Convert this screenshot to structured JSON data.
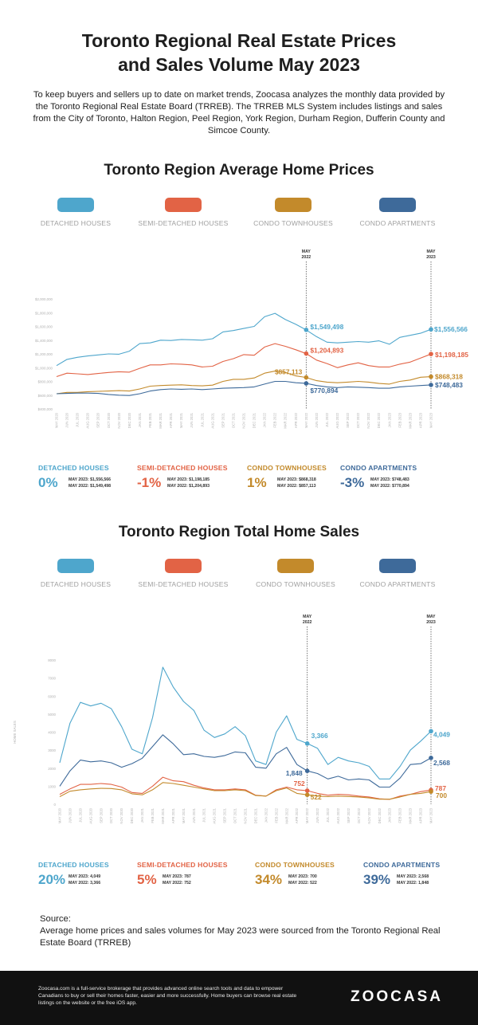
{
  "header": {
    "title_line1": "Toronto Regional Real Estate Prices",
    "title_line2": "and Sales Volume May 2023",
    "intro": "To keep buyers and sellers up to date on market trends, Zoocasa analyzes the monthly data provided by the Toronto Regional Real Estate Board (TRREB). The TRREB MLS System includes listings and sales from the City of Toronto, Halton Region, Peel Region, York Region, Durham Region, Dufferin County and Simcoe County."
  },
  "colors": {
    "detached": "#4ea6cc",
    "semi": "#e26345",
    "condo_town": "#c38a2b",
    "condo_apt": "#3e6a9a"
  },
  "legend": [
    {
      "key": "detached",
      "label": "DETACHED HOUSES"
    },
    {
      "key": "semi",
      "label": "SEMI-DETACHED HOUSES"
    },
    {
      "key": "condo_town",
      "label": "CONDO TOWNHOUSES"
    },
    {
      "key": "condo_apt",
      "label": "CONDO APARTMENTS"
    }
  ],
  "chart_data": [
    {
      "type": "line",
      "title": "Toronto Region Average Home Prices",
      "x": [
        "MAY 2020",
        "JUN 2020",
        "JUL 2020",
        "AUG 2020",
        "SEP 2020",
        "OCT 2020",
        "NOV 2020",
        "DEC 2020",
        "JAN 2021",
        "FEB 2021",
        "MAR 2021",
        "APR 2021",
        "MAY 2021",
        "JUN 2021",
        "JUL 2021",
        "AUG 2021",
        "SEP 2021",
        "OCT 2021",
        "NOV 2021",
        "DEC 2021",
        "JAN 2022",
        "FEB 2022",
        "MAR 2022",
        "APR 2022",
        "MAY 2022",
        "JUN 2022",
        "JUL 2022",
        "AUG 2022",
        "SEP 2022",
        "OCT 2022",
        "NOV 2022",
        "DEC 2022",
        "JAN 2023",
        "FEB 2023",
        "MAR 2023",
        "APR 2023",
        "MAY 2023"
      ],
      "yticks": [
        "$2,000,000",
        "$1,800,000",
        "$1,600,000",
        "$1,400,000",
        "$1,200,000",
        "$1,000,000",
        "$800,000",
        "$600,000",
        "$400,000"
      ],
      "ylim": [
        400000,
        2000000
      ],
      "markers": [
        "MAY 2022",
        "MAY 2023"
      ],
      "series": [
        {
          "name": "DETACHED HOUSES",
          "key": "detached",
          "values": [
            1030000,
            1120000,
            1150000,
            1170000,
            1185000,
            1200000,
            1195000,
            1240000,
            1350000,
            1360000,
            1400000,
            1395000,
            1410000,
            1405000,
            1400000,
            1420000,
            1520000,
            1540000,
            1570000,
            1600000,
            1740000,
            1790000,
            1700000,
            1630000,
            1549498,
            1450000,
            1370000,
            1360000,
            1370000,
            1380000,
            1370000,
            1390000,
            1340000,
            1440000,
            1470000,
            1500000,
            1556566
          ]
        },
        {
          "name": "SEMI-DETACHED HOUSES",
          "key": "semi",
          "values": [
            870000,
            920000,
            910000,
            900000,
            915000,
            930000,
            940000,
            935000,
            990000,
            1040000,
            1040000,
            1055000,
            1050000,
            1040000,
            1010000,
            1020000,
            1090000,
            1130000,
            1190000,
            1180000,
            1300000,
            1350000,
            1310000,
            1260000,
            1204893,
            1110000,
            1060000,
            1000000,
            1040000,
            1070000,
            1030000,
            1010000,
            1010000,
            1050000,
            1080000,
            1140000,
            1198185
          ]
        },
        {
          "name": "CONDO TOWNHOUSES",
          "key": "condo_town",
          "values": [
            620000,
            640000,
            640000,
            650000,
            655000,
            660000,
            665000,
            660000,
            690000,
            730000,
            740000,
            745000,
            750000,
            740000,
            735000,
            745000,
            800000,
            830000,
            830000,
            850000,
            920000,
            950000,
            930000,
            880000,
            857113,
            810000,
            790000,
            780000,
            790000,
            800000,
            790000,
            770000,
            760000,
            800000,
            820000,
            860000,
            868318
          ]
        },
        {
          "name": "CONDO APARTMENTS",
          "key": "condo_apt",
          "values": [
            620000,
            625000,
            630000,
            630000,
            625000,
            610000,
            600000,
            595000,
            620000,
            660000,
            680000,
            690000,
            685000,
            690000,
            680000,
            690000,
            700000,
            705000,
            710000,
            720000,
            760000,
            800000,
            800000,
            780000,
            770894,
            740000,
            720000,
            710000,
            720000,
            715000,
            710000,
            700000,
            700000,
            720000,
            730000,
            740000,
            748483
          ]
        }
      ],
      "callouts": {
        "may2022": [
          "$1,549,498",
          "$1,204,893",
          "$857,113",
          "$770,894"
        ],
        "may2023": [
          "$1,556,566",
          "$1,198,185",
          "$868,318",
          "$748,483"
        ]
      }
    },
    {
      "type": "line",
      "title": "Toronto Region Total Home Sales",
      "ylabel": "HOME SALES",
      "x": [
        "MAY 2020",
        "JUN 2020",
        "JUL 2020",
        "AUG 2020",
        "SEP 2020",
        "OCT 2020",
        "NOV 2020",
        "DEC 2020",
        "JAN 2021",
        "FEB 2021",
        "MAR 2021",
        "APR 2021",
        "MAY 2021",
        "JUN 2021",
        "JUL 2021",
        "AUG 2021",
        "SEP 2021",
        "OCT 2021",
        "NOV 2021",
        "DEC 2021",
        "JAN 2022",
        "FEB 2022",
        "MAR 2022",
        "APR 2022",
        "MAY 2022",
        "JUN 2022",
        "JUL 2022",
        "AUG 2022",
        "SEP 2022",
        "OCT 2022",
        "NOV 2022",
        "DEC 2022",
        "JAN 2023",
        "FEB 2023",
        "MAR 2023",
        "APR 2023",
        "MAY 2023"
      ],
      "yticks": [
        "8000",
        "7000",
        "6000",
        "5000",
        "4000",
        "3000",
        "2000",
        "1000",
        "0"
      ],
      "ylim": [
        0,
        8000
      ],
      "markers": [
        "MAY 2022",
        "MAY 2023"
      ],
      "series": [
        {
          "name": "DETACHED HOUSES",
          "key": "detached",
          "values": [
            2300,
            4500,
            5650,
            5450,
            5600,
            5300,
            4300,
            3050,
            2800,
            4800,
            7600,
            6500,
            5700,
            5200,
            4100,
            3700,
            3900,
            4300,
            3800,
            2400,
            2200,
            4000,
            4900,
            3600,
            3366,
            3100,
            2200,
            2600,
            2400,
            2300,
            2100,
            1400,
            1400,
            2100,
            3000,
            3500,
            4049
          ]
        },
        {
          "name": "SEMI-DETACHED HOUSES",
          "key": "semi",
          "values": [
            550,
            850,
            1100,
            1100,
            1150,
            1100,
            950,
            650,
            600,
            1000,
            1500,
            1300,
            1250,
            1050,
            900,
            800,
            800,
            850,
            800,
            500,
            450,
            800,
            950,
            800,
            752,
            600,
            500,
            550,
            520,
            450,
            400,
            300,
            270,
            450,
            550,
            700,
            787
          ]
        },
        {
          "name": "CONDO TOWNHOUSES",
          "key": "condo_town",
          "values": [
            420,
            720,
            800,
            850,
            880,
            870,
            800,
            580,
            520,
            800,
            1200,
            1150,
            1050,
            950,
            850,
            750,
            750,
            800,
            750,
            480,
            450,
            750,
            900,
            600,
            522,
            450,
            420,
            450,
            430,
            400,
            350,
            280,
            280,
            400,
            550,
            600,
            700
          ]
        },
        {
          "name": "CONDO APARTMENTS",
          "key": "condo_apt",
          "values": [
            1000,
            1850,
            2450,
            2350,
            2400,
            2300,
            2050,
            2250,
            2550,
            3200,
            3850,
            3350,
            2750,
            2800,
            2650,
            2600,
            2700,
            2900,
            2850,
            2050,
            2000,
            2800,
            3150,
            2200,
            1848,
            1700,
            1400,
            1550,
            1350,
            1400,
            1350,
            950,
            950,
            1450,
            2200,
            2250,
            2568
          ]
        }
      ],
      "callouts": {
        "may2022": [
          "3,366",
          "752",
          "522",
          "1,848"
        ],
        "may2023": [
          "4,049",
          "787",
          "700",
          "2,568"
        ]
      }
    }
  ],
  "marker_labels": {
    "left": [
      "MAY",
      "2022"
    ],
    "right": [
      "MAY",
      "2023"
    ]
  },
  "price_stats": [
    {
      "key": "detached",
      "name": "DETACHED HOUSES",
      "pct": "0%",
      "line1": "MAY 2023:  $1,556,566",
      "line2": "MAY 2022:  $1,549,498"
    },
    {
      "key": "semi",
      "name": "SEMI-DETACHED HOUSES",
      "pct": "-1%",
      "line1": "MAY 2023:  $1,198,185",
      "line2": "MAY 2022:  $1,204,893"
    },
    {
      "key": "condo_town",
      "name": "CONDO TOWNHOUSES",
      "pct": "1%",
      "line1": "MAY 2023:  $868,318",
      "line2": "MAY 2022:  $857,113"
    },
    {
      "key": "condo_apt",
      "name": "CONDO APARTMENTS",
      "pct": "-3%",
      "line1": "MAY 2023:  $748,483",
      "line2": "MAY 2022:  $770,894"
    }
  ],
  "sales_stats": [
    {
      "key": "detached",
      "name": "DETACHED HOUSES",
      "pct": "20%",
      "line1": "MAY 2023:  4,049",
      "line2": "MAY 2022:  3,366"
    },
    {
      "key": "semi",
      "name": "SEMI-DETACHED HOUSES",
      "pct": "5%",
      "line1": "MAY 2023:  787",
      "line2": "MAY 2022:  752"
    },
    {
      "key": "condo_town",
      "name": "CONDO TOWNHOUSES",
      "pct": "34%",
      "line1": "MAY 2023:  700",
      "line2": "MAY 2022:  522"
    },
    {
      "key": "condo_apt",
      "name": "CONDO APARTMENTS",
      "pct": "39%",
      "line1": "MAY 2023:  2,568",
      "line2": "MAY 2022:  1,848"
    }
  ],
  "source": {
    "heading": "Source:",
    "text": "Average home prices and sales volumes for May 2023 were sourced from the Toronto Regional Real Estate Board (TRREB)"
  },
  "footer": {
    "text": "Zoocasa.com is a full-service brokerage that provides advanced online search tools and data to empower Canadians to buy or sell their homes faster, easier and more successfully. Home buyers can browse real estate listings on the website or the free iOS app.",
    "logo": "ZOOCASA"
  }
}
